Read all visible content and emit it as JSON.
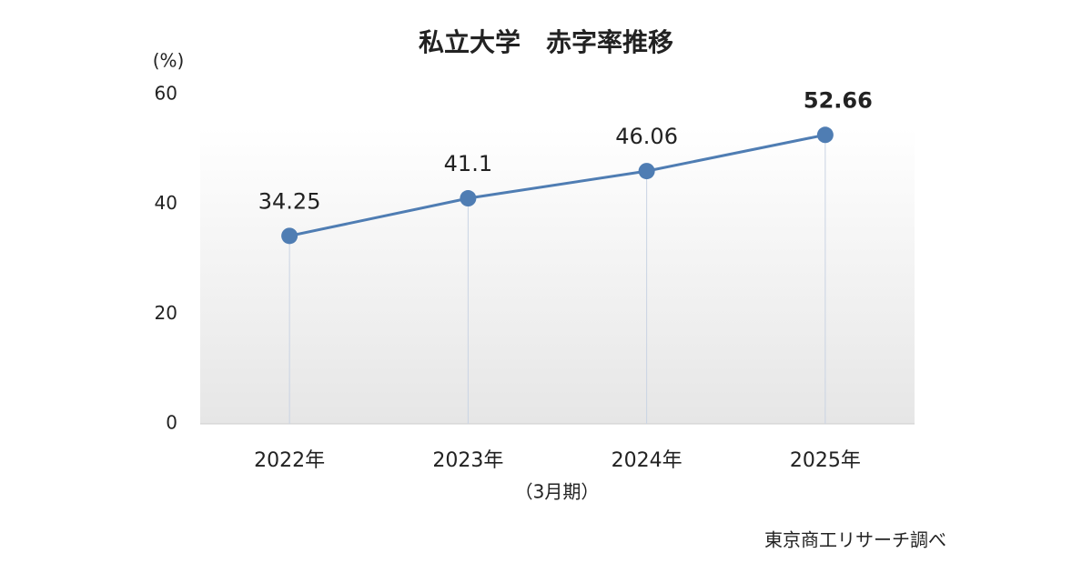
{
  "chart_data": {
    "type": "line",
    "title": "私立大学　赤字率推移",
    "y_unit": "(%)",
    "categories": [
      "2022年",
      "2023年",
      "2024年",
      "2025年"
    ],
    "x_label": "（3月期）",
    "series": [
      {
        "color": "#4f7db3",
        "values": [
          34.25,
          41.1,
          46.06,
          52.66
        ]
      }
    ],
    "ylim": [
      0,
      60
    ],
    "yticks": [
      0,
      20,
      40,
      60
    ],
    "grid": false,
    "source": "東京商工リサーチ調べ"
  }
}
